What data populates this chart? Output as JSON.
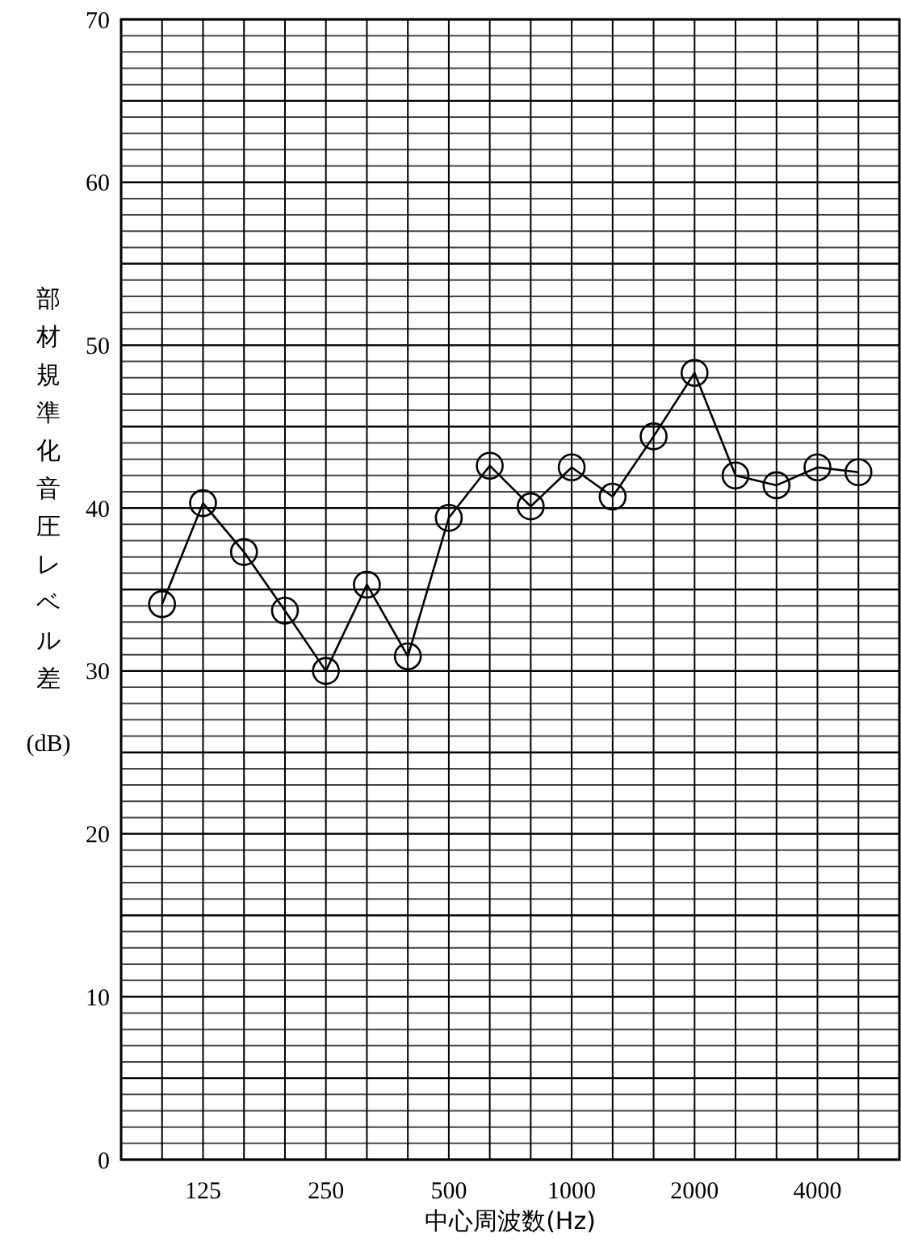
{
  "chart_data": {
    "type": "line",
    "xlabel": "中心周波数(Hz)",
    "ylabel": "部材規準化音圧レベル差(dB)",
    "categories": [
      null,
      "125",
      null,
      null,
      "250",
      null,
      null,
      "500",
      null,
      null,
      "1000",
      null,
      null,
      "2000",
      null,
      null,
      "4000",
      null
    ],
    "series": [
      {
        "color": "#000000",
        "values": [
          34.1,
          40.3,
          37.3,
          33.7,
          30.0,
          35.3,
          30.9,
          39.4,
          42.6,
          40.1,
          42.5,
          40.7,
          44.4,
          48.3,
          42.0,
          41.4,
          42.5,
          42.2
        ]
      }
    ],
    "ylim": [
      0,
      70
    ],
    "yticks": [
      0,
      {
        "value": 1,
        "label": null
      },
      {
        "value": 2,
        "label": null
      },
      {
        "value": 3,
        "label": null
      },
      {
        "value": 4,
        "label": null
      },
      {
        "value": 5,
        "label": null
      },
      {
        "value": 6,
        "label": null
      },
      {
        "value": 7,
        "label": null
      },
      {
        "value": 8,
        "label": null
      },
      {
        "value": 9,
        "label": null
      },
      10,
      {
        "value": 11,
        "label": null
      },
      {
        "value": 12,
        "label": null
      },
      {
        "value": 13,
        "label": null
      },
      {
        "value": 14,
        "label": null
      },
      {
        "value": 15,
        "label": null
      },
      {
        "value": 16,
        "label": null
      },
      {
        "value": 17,
        "label": null
      },
      {
        "value": 18,
        "label": null
      },
      {
        "value": 19,
        "label": null
      },
      20,
      {
        "value": 21,
        "label": null
      },
      {
        "value": 22,
        "label": null
      },
      {
        "value": 23,
        "label": null
      },
      {
        "value": 24,
        "label": null
      },
      {
        "value": 25,
        "label": null
      },
      {
        "value": 26,
        "label": null
      },
      {
        "value": 27,
        "label": null
      },
      {
        "value": 28,
        "label": null
      },
      {
        "value": 29,
        "label": null
      },
      30,
      {
        "value": 31,
        "label": null
      },
      {
        "value": 32,
        "label": null
      },
      {
        "value": 33,
        "label": null
      },
      {
        "value": 34,
        "label": null
      },
      {
        "value": 35,
        "label": null
      },
      {
        "value": 36,
        "label": null
      },
      {
        "value": 37,
        "label": null
      },
      {
        "value": 38,
        "label": null
      },
      {
        "value": 39,
        "label": null
      },
      40,
      {
        "value": 41,
        "label": null
      },
      {
        "value": 42,
        "label": null
      },
      {
        "value": 43,
        "label": null
      },
      {
        "value": 44,
        "label": null
      },
      {
        "value": 45,
        "label": null
      },
      {
        "value": 46,
        "label": null
      },
      {
        "value": 47,
        "label": null
      },
      {
        "value": 48,
        "label": null
      },
      {
        "value": 49,
        "label": null
      },
      50,
      {
        "value": 51,
        "label": null
      },
      {
        "value": 52,
        "label": null
      },
      {
        "value": 53,
        "label": null
      },
      {
        "value": 54,
        "label": null
      },
      {
        "value": 55,
        "label": null
      },
      {
        "value": 56,
        "label": null
      },
      {
        "value": 57,
        "label": null
      },
      {
        "value": 58,
        "label": null
      },
      {
        "value": 59,
        "label": null
      },
      60,
      {
        "value": 61,
        "label": null
      },
      {
        "value": 62,
        "label": null
      },
      {
        "value": 63,
        "label": null
      },
      {
        "value": 64,
        "label": null
      },
      {
        "value": 65,
        "label": null
      },
      {
        "value": 66,
        "label": null
      },
      {
        "value": 67,
        "label": null
      },
      {
        "value": 68,
        "label": null
      },
      {
        "value": 69,
        "label": null
      },
      70
    ],
    "grid": true,
    "marker": "circle",
    "line_style": "solid"
  }
}
